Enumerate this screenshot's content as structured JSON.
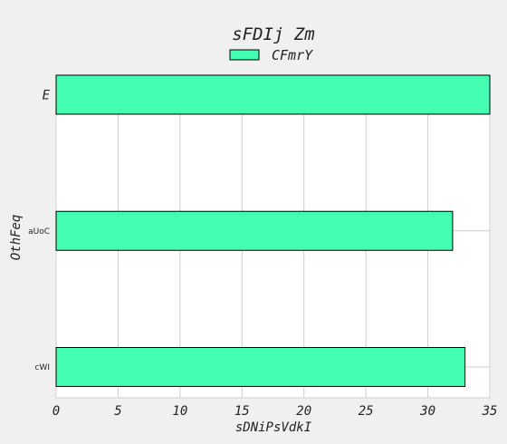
{
  "chart_data": {
    "type": "bar",
    "orientation": "horizontal",
    "title": "sFDIj Zm",
    "xlabel": "sDNiPsVdkI",
    "ylabel": "OthFeq",
    "categories": [
      "E",
      "aUoC",
      "cWI"
    ],
    "series": [
      {
        "name": "CFmrY",
        "values": [
          35,
          32,
          33
        ]
      }
    ],
    "xlim": [
      0,
      35
    ],
    "xticks": [
      "0",
      "5",
      "10",
      "15",
      "20",
      "25",
      "30",
      "35"
    ],
    "grid": true,
    "legend_position": "top-center",
    "colors": {
      "bar": "#44ffb1",
      "bar_edge": "#000000",
      "background": "#f0f0f0",
      "plot_bg": "#ffffff",
      "grid": "#cfcfcf"
    }
  }
}
